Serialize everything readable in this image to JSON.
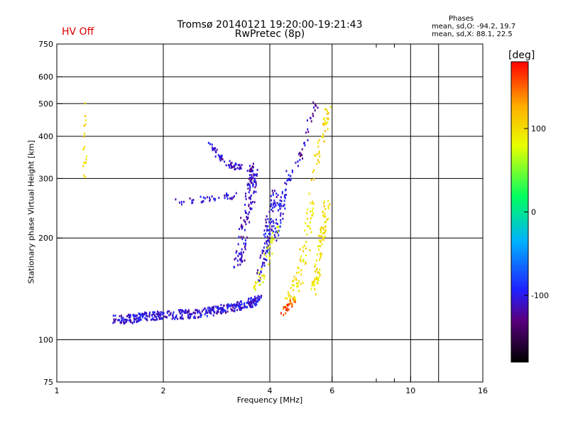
{
  "header": {
    "title": "Tromsø 20140121 19:20:00-19:21:43",
    "subtitle": "RwPretec (8p)",
    "status": "HV Off",
    "status_color": "#e00000"
  },
  "phase_stats": {
    "heading": "Phases",
    "line_o": "mean, sd,O: -94.2, 19.7",
    "line_x": "mean, sd,X:  88.1, 22.5"
  },
  "colorbar": {
    "unit": "[deg]",
    "ticks": [
      {
        "value": 100,
        "label": "100"
      },
      {
        "value": 0,
        "label": "0"
      },
      {
        "value": -100,
        "label": "-100"
      }
    ],
    "range": [
      -180,
      180
    ],
    "colors": [
      "#000000",
      "#5a0080",
      "#2020ff",
      "#00b0ff",
      "#00ff60",
      "#e8ff00",
      "#ffb000",
      "#ff0000"
    ]
  },
  "chart_data": {
    "type": "scatter",
    "xlabel": "Frequency [MHz]",
    "ylabel": "Stationary phase Virtual Height [km]",
    "xscale": "log",
    "yscale": "log",
    "xlim": [
      1,
      16
    ],
    "ylim": [
      75,
      750
    ],
    "xticks": [
      1,
      2,
      4,
      6,
      10,
      16
    ],
    "xtick_labels": [
      "1",
      "2",
      "4",
      "6",
      "10",
      "16"
    ],
    "xgrid": [
      2,
      4,
      6,
      10,
      12
    ],
    "minor_x": [
      8,
      9
    ],
    "yticks": [
      75,
      100,
      200,
      300,
      400,
      500,
      600,
      750
    ],
    "ytick_labels": [
      "75",
      "100",
      "200",
      "300",
      "400",
      "500",
      "600",
      "750"
    ],
    "ygrid": [
      100,
      200,
      300,
      400,
      500,
      600
    ],
    "grid": true,
    "color_by": "phase [deg]",
    "traces": [
      {
        "f": [
          1.45,
          1.6,
          1.8,
          2.0,
          2.3,
          2.6,
          2.9,
          3.2,
          3.5,
          3.75
        ],
        "h": [
          115,
          115,
          117,
          118,
          119,
          120,
          123,
          125,
          128,
          132
        ],
        "phase": -105,
        "jitter": 0.06,
        "n": 420
      },
      {
        "f": [
          2.7,
          2.85,
          3.0,
          3.2,
          3.4,
          3.6
        ],
        "h": [
          385,
          350,
          335,
          325,
          322,
          320
        ],
        "phase": -110,
        "jitter": 0.04,
        "n": 70
      },
      {
        "f": [
          2.1,
          2.4,
          2.7,
          3.0,
          3.3
        ],
        "h": [
          255,
          258,
          262,
          265,
          268
        ],
        "phase": -108,
        "jitter": 0.04,
        "n": 40
      },
      {
        "f": [
          3.25,
          3.35,
          3.45,
          3.55,
          3.6
        ],
        "h": [
          160,
          200,
          240,
          280,
          320
        ],
        "phase": -112,
        "jitter": 0.1,
        "n": 130
      },
      {
        "f": [
          3.75,
          3.85,
          3.95,
          4.05,
          4.15
        ],
        "h": [
          150,
          180,
          210,
          240,
          270
        ],
        "phase": -105,
        "jitter": 0.08,
        "n": 90
      },
      {
        "f": [
          4.1,
          4.3,
          4.4,
          4.6
        ],
        "h": [
          200,
          240,
          280,
          320
        ],
        "phase": -100,
        "jitter": 0.07,
        "n": 60
      },
      {
        "f": [
          3.6,
          3.8,
          4.0,
          4.2
        ],
        "h": [
          140,
          155,
          185,
          220
        ],
        "phase": 85,
        "jitter": 0.07,
        "n": 40
      },
      {
        "f": [
          4.5,
          4.7,
          4.9,
          5.1,
          5.3
        ],
        "h": [
          130,
          140,
          160,
          200,
          260
        ],
        "phase": 95,
        "jitter": 0.09,
        "n": 80
      },
      {
        "f": [
          5.35,
          5.5,
          5.65,
          5.8
        ],
        "h": [
          140,
          170,
          210,
          260
        ],
        "phase": 100,
        "jitter": 0.08,
        "n": 90
      },
      {
        "f": [
          5.3,
          5.5,
          5.7,
          5.85
        ],
        "h": [
          300,
          360,
          420,
          480
        ],
        "phase": 110,
        "jitter": 0.06,
        "n": 40
      },
      {
        "f": [
          4.8,
          5.0,
          5.2,
          5.4
        ],
        "h": [
          330,
          380,
          440,
          500
        ],
        "phase": -115,
        "jitter": 0.06,
        "n": 30
      },
      {
        "f": [
          1.2,
          1.2,
          1.2,
          1.2
        ],
        "h": [
          300,
          360,
          420,
          520
        ],
        "phase": 100,
        "jitter": 0.04,
        "n": 18
      },
      {
        "f": [
          4.3,
          4.5,
          4.7
        ],
        "h": [
          120,
          125,
          132
        ],
        "phase": 160,
        "jitter": 0.05,
        "n": 25
      }
    ]
  }
}
